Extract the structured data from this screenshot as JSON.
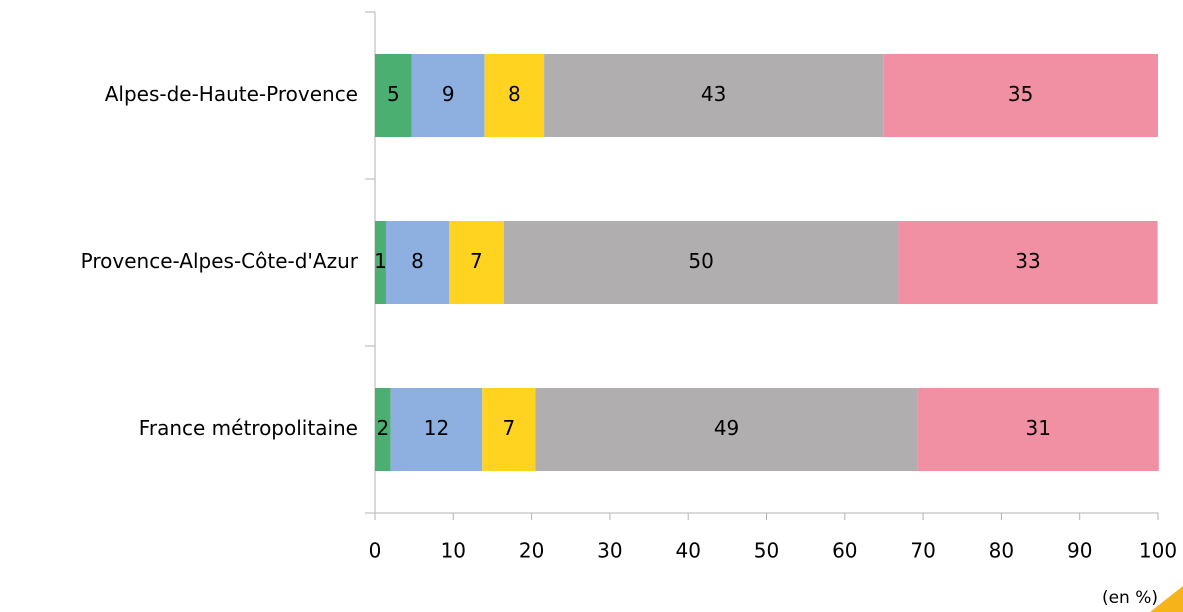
{
  "chart_data": {
    "type": "stacked_barh",
    "categories": [
      "Alpes-de-Haute-Provence",
      "Provence-Alpes-Côte-d'Azur",
      "France métropolitaine"
    ],
    "series": [
      {
        "color": "#4caf72",
        "values": [
          4.7,
          1.4,
          2.0
        ],
        "value_labels": [
          "5",
          "1",
          "2"
        ]
      },
      {
        "color": "#8eb0e0",
        "values": [
          9.3,
          8.05,
          11.7
        ],
        "value_labels": [
          "9",
          "8",
          "12"
        ]
      },
      {
        "color": "#ffd320",
        "values": [
          7.6,
          7.0,
          6.8
        ],
        "value_labels": [
          "8",
          "7",
          "7"
        ]
      },
      {
        "color": "#b0aeae",
        "values": [
          43.3,
          50.4,
          48.8
        ],
        "value_labels": [
          "43",
          "50",
          "49"
        ]
      },
      {
        "color": "#f190a2",
        "values": [
          35.1,
          33.1,
          30.8
        ],
        "value_labels": [
          "35",
          "33",
          "31"
        ]
      }
    ],
    "xlim": [
      0,
      100
    ],
    "xticks": [
      0,
      10,
      20,
      30,
      40,
      50,
      60,
      70,
      80,
      90,
      100
    ],
    "annotation": "(en %)"
  }
}
